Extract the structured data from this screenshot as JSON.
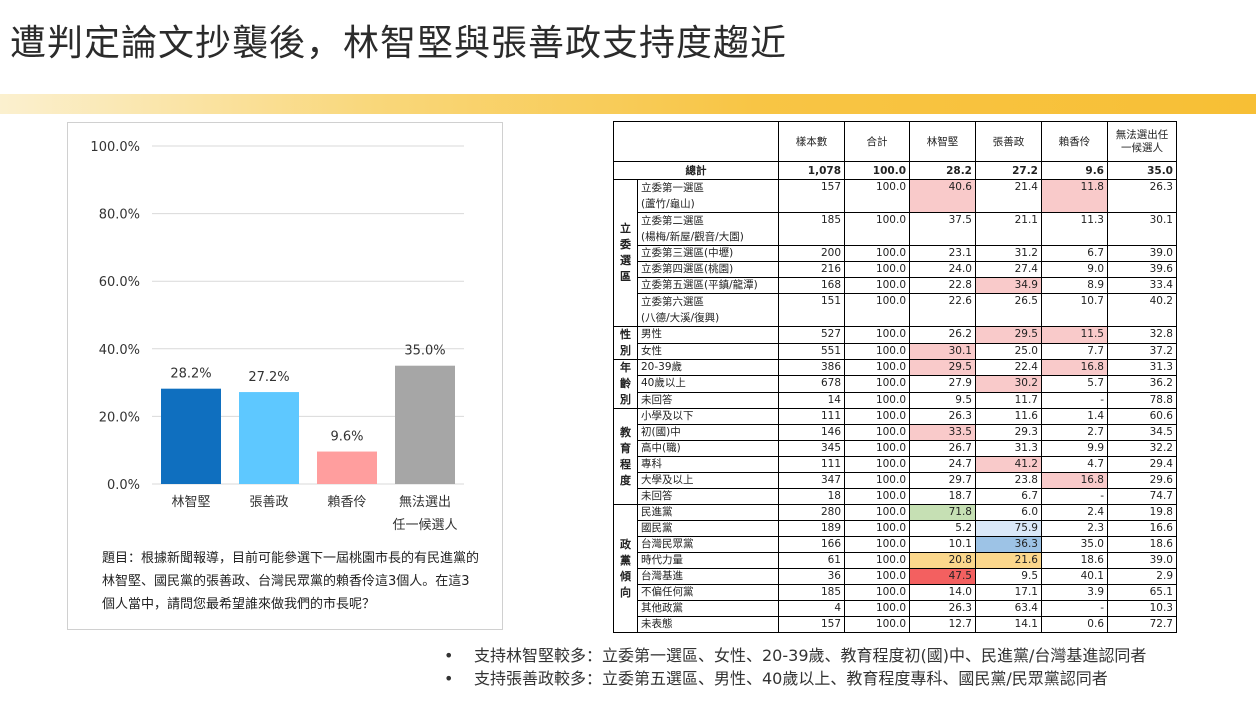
{
  "slide_title": "遭判定論文抄襲後，林智堅與張善政支持度趨近",
  "chart_data": {
    "type": "bar",
    "categories": [
      "林智堅",
      "張善政",
      "賴香伶",
      "無法選出\n任一候選人"
    ],
    "values": [
      28.2,
      27.2,
      9.6,
      35.0
    ],
    "value_labels": [
      "28.2%",
      "27.2%",
      "9.6%",
      "35.0%"
    ],
    "colors": [
      "#0f6fbf",
      "#5ec8ff",
      "#ff9e9e",
      "#a6a6a6"
    ],
    "ylim": [
      0,
      100
    ],
    "yticks": [
      0,
      20,
      40,
      60,
      80,
      100
    ],
    "ytick_labels": [
      "0.0%",
      "20.0%",
      "40.0%",
      "60.0%",
      "80.0%",
      "100.0%"
    ],
    "grid": true
  },
  "question": "題目：根據新聞報導，目前可能參選下一屆桃園市長的有民進黨的林智堅、國民黨的張善政、台灣民眾黨的賴香伶這3個人。在這3個人當中，請問您最希望誰來做我們的市長呢？",
  "table": {
    "headers": [
      "",
      "樣本數",
      "合計",
      "林智堅",
      "張善政",
      "賴香伶",
      "無法選出任一候選人"
    ],
    "total": {
      "label": "總計",
      "values": [
        "1,078",
        "100.0",
        "28.2",
        "27.2",
        "9.6",
        "35.0"
      ]
    },
    "groups": [
      {
        "name": "立委選區",
        "rows": [
          {
            "label": "立委第一選區\n(蘆竹/龜山)",
            "values": [
              "157",
              "100.0",
              "40.6",
              "21.4",
              "11.8",
              "26.3"
            ],
            "hl": [
              "",
              "",
              "pink",
              "",
              "pink",
              ""
            ]
          },
          {
            "label": "立委第二選區\n(楊梅/新屋/觀音/大園)",
            "values": [
              "185",
              "100.0",
              "37.5",
              "21.1",
              "11.3",
              "30.1"
            ],
            "hl": [
              "",
              "",
              "",
              "",
              "",
              ""
            ]
          },
          {
            "label": "立委第三選區(中壢)",
            "values": [
              "200",
              "100.0",
              "23.1",
              "31.2",
              "6.7",
              "39.0"
            ],
            "hl": [
              "",
              "",
              "",
              "",
              "",
              ""
            ]
          },
          {
            "label": "立委第四選區(桃園)",
            "values": [
              "216",
              "100.0",
              "24.0",
              "27.4",
              "9.0",
              "39.6"
            ],
            "hl": [
              "",
              "",
              "",
              "",
              "",
              ""
            ]
          },
          {
            "label": "立委第五選區(平鎮/龍潭)",
            "values": [
              "168",
              "100.0",
              "22.8",
              "34.9",
              "8.9",
              "33.4"
            ],
            "hl": [
              "",
              "",
              "",
              "pink",
              "",
              ""
            ]
          },
          {
            "label": "立委第六選區\n(八德/大溪/復興)",
            "values": [
              "151",
              "100.0",
              "22.6",
              "26.5",
              "10.7",
              "40.2"
            ],
            "hl": [
              "",
              "",
              "",
              "",
              "",
              ""
            ]
          }
        ]
      },
      {
        "name": "性別",
        "rows": [
          {
            "label": "男性",
            "values": [
              "527",
              "100.0",
              "26.2",
              "29.5",
              "11.5",
              "32.8"
            ],
            "hl": [
              "",
              "",
              "",
              "pink",
              "pink",
              ""
            ]
          },
          {
            "label": "女性",
            "values": [
              "551",
              "100.0",
              "30.1",
              "25.0",
              "7.7",
              "37.2"
            ],
            "hl": [
              "",
              "",
              "pink",
              "",
              "",
              ""
            ]
          }
        ]
      },
      {
        "name": "年齡別",
        "rows": [
          {
            "label": "20-39歲",
            "values": [
              "386",
              "100.0",
              "29.5",
              "22.4",
              "16.8",
              "31.3"
            ],
            "hl": [
              "",
              "",
              "pink",
              "",
              "pink",
              ""
            ]
          },
          {
            "label": "40歲以上",
            "values": [
              "678",
              "100.0",
              "27.9",
              "30.2",
              "5.7",
              "36.2"
            ],
            "hl": [
              "",
              "",
              "",
              "pink",
              "",
              ""
            ]
          },
          {
            "label": "未回答",
            "values": [
              "14",
              "100.0",
              "9.5",
              "11.7",
              "-",
              "78.8"
            ],
            "hl": [
              "",
              "",
              "",
              "",
              "",
              ""
            ]
          }
        ]
      },
      {
        "name": "教育程度",
        "rows": [
          {
            "label": "小學及以下",
            "values": [
              "111",
              "100.0",
              "26.3",
              "11.6",
              "1.4",
              "60.6"
            ],
            "hl": [
              "",
              "",
              "",
              "",
              "",
              ""
            ]
          },
          {
            "label": "初(國)中",
            "values": [
              "146",
              "100.0",
              "33.5",
              "29.3",
              "2.7",
              "34.5"
            ],
            "hl": [
              "",
              "",
              "pink",
              "",
              "",
              ""
            ]
          },
          {
            "label": "高中(職)",
            "values": [
              "345",
              "100.0",
              "26.7",
              "31.3",
              "9.9",
              "32.2"
            ],
            "hl": [
              "",
              "",
              "",
              "",
              "",
              ""
            ]
          },
          {
            "label": "專科",
            "values": [
              "111",
              "100.0",
              "24.7",
              "41.2",
              "4.7",
              "29.4"
            ],
            "hl": [
              "",
              "",
              "",
              "pink",
              "",
              ""
            ]
          },
          {
            "label": "大學及以上",
            "values": [
              "347",
              "100.0",
              "29.7",
              "23.8",
              "16.8",
              "29.6"
            ],
            "hl": [
              "",
              "",
              "",
              "",
              "pink",
              ""
            ]
          },
          {
            "label": "未回答",
            "values": [
              "18",
              "100.0",
              "18.7",
              "6.7",
              "-",
              "74.7"
            ],
            "hl": [
              "",
              "",
              "",
              "",
              "",
              ""
            ]
          }
        ]
      },
      {
        "name": "政黨傾向",
        "rows": [
          {
            "label": "民進黨",
            "values": [
              "280",
              "100.0",
              "71.8",
              "6.0",
              "2.4",
              "19.8"
            ],
            "hl": [
              "",
              "",
              "green",
              "",
              "",
              ""
            ]
          },
          {
            "label": "國民黨",
            "values": [
              "189",
              "100.0",
              "5.2",
              "75.9",
              "2.3",
              "16.6"
            ],
            "hl": [
              "",
              "",
              "",
              "blue",
              "",
              ""
            ]
          },
          {
            "label": "台灣民眾黨",
            "values": [
              "166",
              "100.0",
              "10.1",
              "36.3",
              "35.0",
              "18.6"
            ],
            "hl": [
              "",
              "",
              "",
              "blue2",
              "",
              ""
            ]
          },
          {
            "label": "時代力量",
            "values": [
              "61",
              "100.0",
              "20.8",
              "21.6",
              "18.6",
              "39.0"
            ],
            "hl": [
              "",
              "",
              "yellow",
              "yellow",
              "",
              ""
            ]
          },
          {
            "label": "台灣基進",
            "values": [
              "36",
              "100.0",
              "47.5",
              "9.5",
              "40.1",
              "2.9"
            ],
            "hl": [
              "",
              "",
              "red",
              "",
              "",
              ""
            ]
          },
          {
            "label": "不偏任何黨",
            "values": [
              "185",
              "100.0",
              "14.0",
              "17.1",
              "3.9",
              "65.1"
            ],
            "hl": [
              "",
              "",
              "",
              "",
              "",
              ""
            ]
          },
          {
            "label": "其他政黨",
            "values": [
              "4",
              "100.0",
              "26.3",
              "63.4",
              "-",
              "10.3"
            ],
            "hl": [
              "",
              "",
              "",
              "",
              "",
              ""
            ]
          },
          {
            "label": "未表態",
            "values": [
              "157",
              "100.0",
              "12.7",
              "14.1",
              "0.6",
              "72.7"
            ],
            "hl": [
              "",
              "",
              "",
              "",
              "",
              ""
            ]
          }
        ]
      }
    ]
  },
  "bullets": [
    "支持林智堅較多：立委第一選區、女性、20-39歲、教育程度初(國)中、民進黨/台灣基進認同者",
    "支持張善政較多：立委第五選區、男性、40歲以上、教育程度專科、國民黨/民眾黨認同者"
  ],
  "bullet_symbol": "•"
}
